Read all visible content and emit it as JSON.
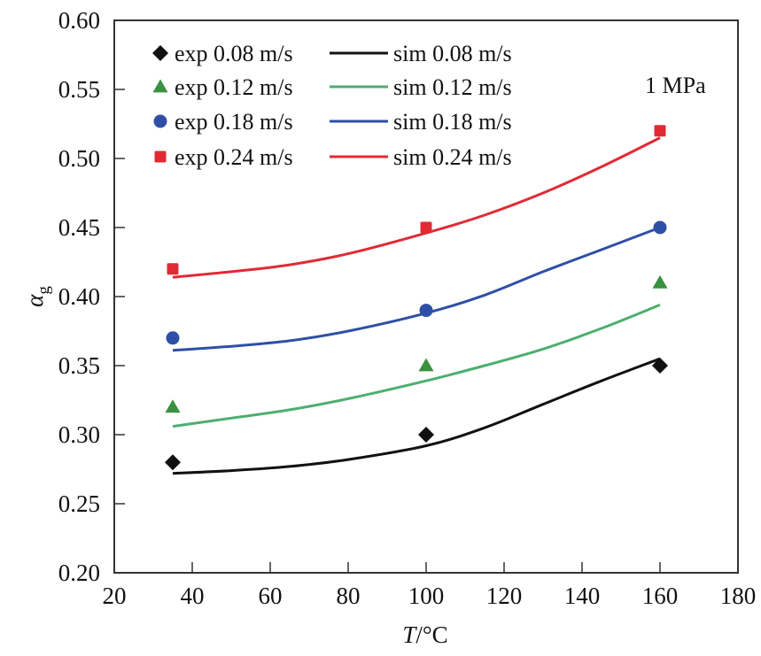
{
  "chart_data": {
    "type": "scatter",
    "title": "",
    "xlabel": "T/°C",
    "xlabel_parts": {
      "var": "T",
      "unit": "/°C"
    },
    "ylabel": "αg",
    "ylabel_parts": {
      "symbol": "α",
      "subscript": "g"
    },
    "xlim": [
      20,
      180
    ],
    "ylim": [
      0.2,
      0.6
    ],
    "x_ticks": [
      20,
      40,
      60,
      80,
      100,
      120,
      140,
      160,
      180
    ],
    "x_tick_labels": [
      "20",
      "40",
      "60",
      "80",
      "100",
      "120",
      "140",
      "160",
      "180"
    ],
    "y_ticks": [
      0.2,
      0.25,
      0.3,
      0.35,
      0.4,
      0.45,
      0.5,
      0.55,
      0.6
    ],
    "y_tick_labels": [
      "0.20",
      "0.25",
      "0.30",
      "0.35",
      "0.40",
      "0.45",
      "0.50",
      "0.55",
      "0.60"
    ],
    "grid": false,
    "legend_position": "top-left",
    "annotation": "1 MPa",
    "annotation_position": "top-right",
    "series": [
      {
        "name": "exp 0.08 m/s",
        "kind": "marker",
        "marker": "diamond",
        "color": "#111111",
        "x": [
          35,
          100,
          160
        ],
        "y": [
          0.28,
          0.3,
          0.35
        ]
      },
      {
        "name": "exp 0.12 m/s",
        "kind": "marker",
        "marker": "triangle",
        "color": "#3a9140",
        "x": [
          35,
          100,
          160
        ],
        "y": [
          0.32,
          0.35,
          0.41
        ]
      },
      {
        "name": "exp 0.18 m/s",
        "kind": "marker",
        "marker": "circle",
        "color": "#2f4fa6",
        "x": [
          35,
          100,
          160
        ],
        "y": [
          0.37,
          0.39,
          0.45
        ]
      },
      {
        "name": "exp 0.24 m/s",
        "kind": "marker",
        "marker": "square",
        "color": "#e02b35",
        "x": [
          35,
          100,
          160
        ],
        "y": [
          0.42,
          0.45,
          0.52
        ]
      },
      {
        "name": "sim 0.08 m/s",
        "kind": "line",
        "color": "#111111",
        "x": [
          35,
          50,
          65,
          80,
          100,
          115,
          130,
          145,
          160
        ],
        "y": [
          0.272,
          0.274,
          0.277,
          0.282,
          0.292,
          0.305,
          0.322,
          0.339,
          0.355
        ]
      },
      {
        "name": "sim 0.12 m/s",
        "kind": "line",
        "color": "#4caf6e",
        "x": [
          35,
          50,
          65,
          80,
          100,
          115,
          130,
          145,
          160
        ],
        "y": [
          0.306,
          0.312,
          0.318,
          0.326,
          0.339,
          0.35,
          0.362,
          0.377,
          0.394
        ]
      },
      {
        "name": "sim 0.18 m/s",
        "kind": "line",
        "color": "#2f4fa6",
        "x": [
          35,
          50,
          65,
          80,
          100,
          115,
          130,
          145,
          160
        ],
        "y": [
          0.361,
          0.364,
          0.368,
          0.375,
          0.388,
          0.401,
          0.418,
          0.434,
          0.45
        ]
      },
      {
        "name": "sim 0.24 m/s",
        "kind": "line",
        "color": "#e02b35",
        "x": [
          35,
          50,
          65,
          80,
          100,
          115,
          130,
          145,
          160
        ],
        "y": [
          0.414,
          0.418,
          0.423,
          0.431,
          0.446,
          0.459,
          0.475,
          0.494,
          0.515
        ]
      }
    ]
  }
}
